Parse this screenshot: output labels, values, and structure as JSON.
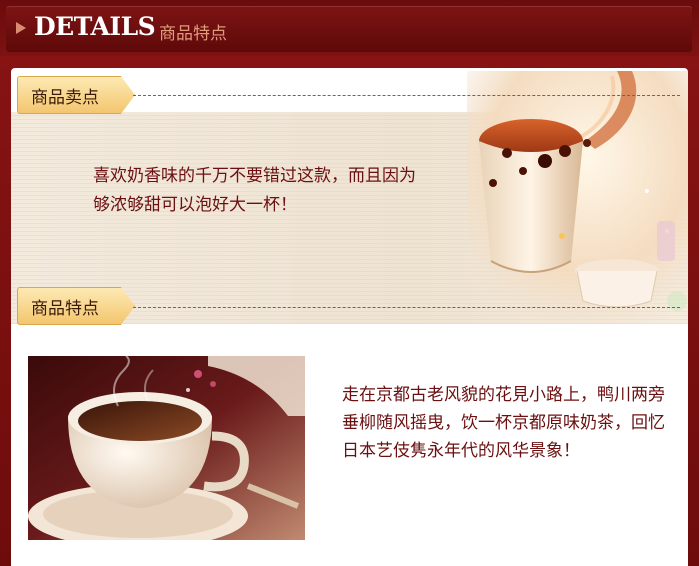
{
  "header": {
    "title_en": "DETAILS",
    "title_cn": "商品特点"
  },
  "selling_points": {
    "tag_label": "商品卖点",
    "description": "喜欢奶香味的千万不要错过这款，而且因为够浓够甜可以泡好大一杯！"
  },
  "features": {
    "tag_label": "商品特点",
    "description": "走在京都古老风貌的花見小路上，鸭川两旁垂柳随风摇曳，饮一杯京都原味奶茶，回忆日本艺伎隽永年代的风华景象！"
  },
  "colors": {
    "header_bg": "#7a1010",
    "accent_text": "#6b0f10",
    "tag_fill": "#f6d48a"
  }
}
